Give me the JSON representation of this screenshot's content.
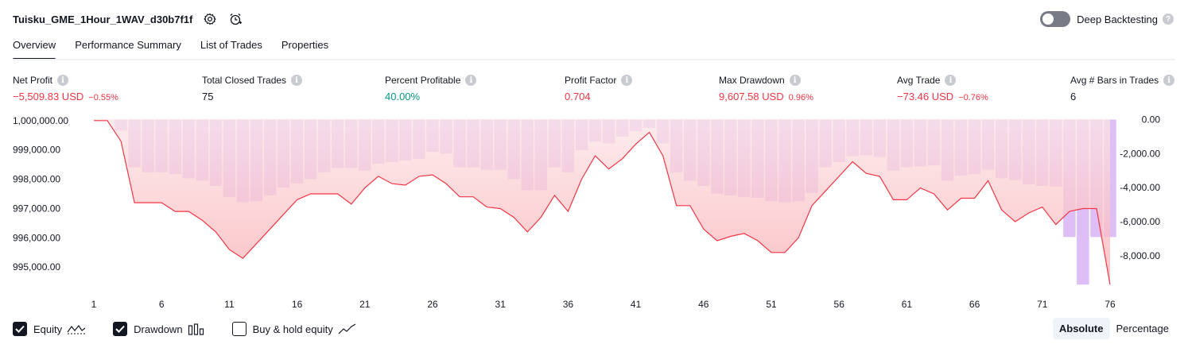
{
  "header": {
    "strategy_name": "Tuisku_GME_1Hour_1WAV_d30b7f1f",
    "deep_backtesting_label": "Deep Backtesting",
    "deep_backtesting_on": false
  },
  "tabs": [
    {
      "label": "Overview",
      "active": true
    },
    {
      "label": "Performance Summary",
      "active": false
    },
    {
      "label": "List of Trades",
      "active": false
    },
    {
      "label": "Properties",
      "active": false
    }
  ],
  "metrics": {
    "net_profit": {
      "label": "Net Profit",
      "value": "−5,509.83 USD",
      "sub": "−0.55%"
    },
    "total_closed_trades": {
      "label": "Total Closed Trades",
      "value": "75"
    },
    "percent_profitable": {
      "label": "Percent Profitable",
      "value": "40.00%"
    },
    "profit_factor": {
      "label": "Profit Factor",
      "value": "0.704"
    },
    "max_drawdown": {
      "label": "Max Drawdown",
      "value": "9,607.58 USD",
      "sub": "0.96%"
    },
    "avg_trade": {
      "label": "Avg Trade",
      "value": "−73.46 USD",
      "sub": "−0.76%"
    },
    "avg_bars": {
      "label": "Avg # Bars in Trades",
      "value": "6"
    }
  },
  "chart_data": {
    "type": "area",
    "x_tick_labels": [
      "1",
      "6",
      "11",
      "16",
      "21",
      "26",
      "31",
      "36",
      "41",
      "46",
      "51",
      "56",
      "61",
      "66",
      "71",
      "76"
    ],
    "left_axis_ticks": [
      "1,000,000.00",
      "999,000.00",
      "998,000.00",
      "997,000.00",
      "996,000.00",
      "995,000.00"
    ],
    "right_axis_ticks": [
      "0.00",
      "-2,000.00",
      "-4,000.00",
      "-6,000.00",
      "-8,000.00"
    ],
    "left_ylim": [
      994300,
      1000050
    ],
    "right_ylim": [
      -9900,
      0
    ],
    "equity": {
      "x": [
        1,
        2,
        3,
        4,
        5,
        6,
        7,
        8,
        9,
        10,
        11,
        12,
        13,
        14,
        15,
        16,
        17,
        18,
        19,
        20,
        21,
        22,
        23,
        24,
        25,
        26,
        27,
        28,
        29,
        30,
        31,
        32,
        33,
        34,
        35,
        36,
        37,
        38,
        39,
        40,
        41,
        42,
        43,
        44,
        45,
        46,
        47,
        48,
        49,
        50,
        51,
        52,
        53,
        54,
        55,
        56,
        57,
        58,
        59,
        60,
        61,
        62,
        63,
        64,
        65,
        66,
        67,
        68,
        69,
        70,
        71,
        72,
        73,
        74,
        75,
        76
      ],
      "values": [
        1000000,
        1000000,
        999300,
        997200,
        997200,
        997200,
        996900,
        996900,
        996600,
        996200,
        995600,
        995300,
        995800,
        996300,
        996800,
        997300,
        997500,
        997500,
        997500,
        997150,
        997700,
        998100,
        997850,
        997800,
        998100,
        998150,
        997850,
        997400,
        997400,
        997050,
        997000,
        996700,
        996200,
        996700,
        997450,
        996900,
        998000,
        998800,
        998350,
        998700,
        999200,
        999600,
        998800,
        997100,
        997100,
        996300,
        995900,
        996050,
        996150,
        995900,
        995500,
        995500,
        996000,
        997100,
        997600,
        998100,
        998600,
        998200,
        998100,
        997300,
        997300,
        997700,
        997500,
        996950,
        997350,
        997350,
        997950,
        996950,
        996550,
        996850,
        997050,
        996450,
        996900,
        997000,
        997000,
        994400
      ]
    },
    "drawdown": {
      "x": [
        1,
        2,
        3,
        4,
        5,
        6,
        7,
        8,
        9,
        10,
        11,
        12,
        13,
        14,
        15,
        16,
        17,
        18,
        19,
        20,
        21,
        22,
        23,
        24,
        25,
        26,
        27,
        28,
        29,
        30,
        31,
        32,
        33,
        34,
        35,
        36,
        37,
        38,
        39,
        40,
        41,
        42,
        43,
        44,
        45,
        46,
        47,
        48,
        49,
        50,
        51,
        52,
        53,
        54,
        55,
        56,
        57,
        58,
        59,
        60,
        61,
        62,
        63,
        64,
        65,
        66,
        67,
        68,
        69,
        70,
        71,
        72,
        73,
        74,
        75,
        76
      ],
      "values": [
        0,
        0,
        -650,
        -2800,
        -3100,
        -3100,
        -3200,
        -3450,
        -3600,
        -3900,
        -4550,
        -4850,
        -4800,
        -4450,
        -4000,
        -3750,
        -3500,
        -3100,
        -2850,
        -2850,
        -3000,
        -2600,
        -2500,
        -2400,
        -2300,
        -1900,
        -2000,
        -2800,
        -2800,
        -2950,
        -2950,
        -3500,
        -4150,
        -4150,
        -2800,
        -3100,
        -1800,
        -1300,
        -1400,
        -1000,
        -700,
        -500,
        -1400,
        -3100,
        -3600,
        -3900,
        -4350,
        -4450,
        -4550,
        -4600,
        -4800,
        -4850,
        -4800,
        -4300,
        -2800,
        -2500,
        -2150,
        -2100,
        -2200,
        -3000,
        -2800,
        -2750,
        -2700,
        -3600,
        -3300,
        -3200,
        -2950,
        -3450,
        -3550,
        -3800,
        -3900,
        -3950,
        -6900,
        -9700,
        -6900,
        -6900
      ]
    }
  },
  "legend": {
    "equity": {
      "label": "Equity",
      "checked": true
    },
    "drawdown": {
      "label": "Drawdown",
      "checked": true
    },
    "buy_hold": {
      "label": "Buy & hold equity",
      "checked": false
    }
  },
  "mode": {
    "absolute": "Absolute",
    "percentage": "Percentage",
    "selected": "absolute"
  },
  "colors": {
    "equity_line": "#f23645",
    "equity_fill_top": "#fbc9cc",
    "drawdown_bar": "#d9b8f5",
    "positive": "#089981",
    "negative": "#f23645"
  }
}
